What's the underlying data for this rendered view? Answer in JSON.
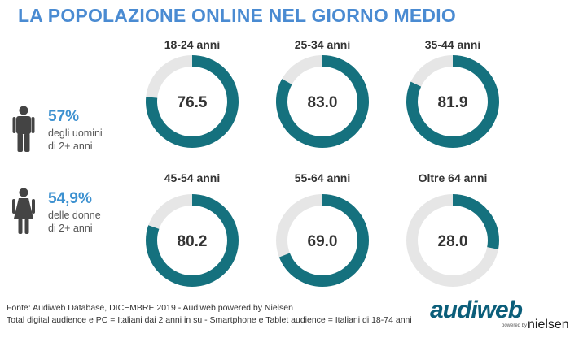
{
  "title": "LA POPOLAZIONE ONLINE NEL GIORNO MEDIO",
  "colors": {
    "accent": "#15717e",
    "track": "#e6e6e6",
    "title": "#4a8bd2",
    "stat": "#3d91d0"
  },
  "stats": {
    "men": {
      "icon": "male-person-icon",
      "pct": "57%",
      "line1": "degli uomini",
      "line2": "di 2+ anni"
    },
    "women": {
      "icon": "female-person-icon",
      "pct": "54,9%",
      "line1": "delle donne",
      "line2": "di 2+ anni"
    }
  },
  "chart_data": {
    "type": "donut",
    "scale_max": 100,
    "items": [
      {
        "label": "18-24 anni",
        "value": 76.5,
        "value_label": "76.5"
      },
      {
        "label": "25-34 anni",
        "value": 83.0,
        "value_label": "83.0"
      },
      {
        "label": "35-44 anni",
        "value": 81.9,
        "value_label": "81.9"
      },
      {
        "label": "45-54 anni",
        "value": 80.2,
        "value_label": "80.2"
      },
      {
        "label": "55-64 anni",
        "value": 69.0,
        "value_label": "69.0"
      },
      {
        "label": "Oltre 64 anni",
        "value": 28.0,
        "value_label": "28.0"
      }
    ]
  },
  "source": {
    "line1": "Fonte: Audiweb Database, DICEMBRE 2019 - Audiweb powered by Nielsen",
    "line2": "Total digital audience e PC = Italiani dai 2 anni in su - Smartphone e Tablet audience = Italiani di 18-74 anni"
  },
  "logo": {
    "brand": "audiweb",
    "powered": "powered by",
    "partner": "nielsen"
  }
}
